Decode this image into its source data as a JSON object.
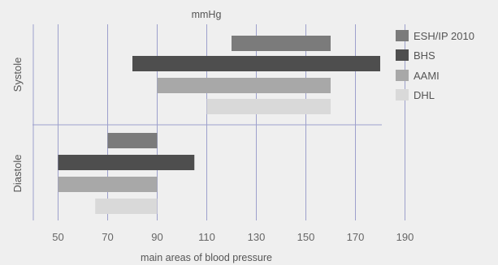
{
  "chart_data": {
    "type": "bar",
    "orientation": "horizontal-range",
    "title": "mmHg",
    "xlabel": "main areas of blood pressure",
    "xlim": [
      40,
      190
    ],
    "xticks": [
      50,
      70,
      90,
      110,
      130,
      150,
      170,
      190
    ],
    "groups": [
      {
        "label": "Systole",
        "bars": [
          {
            "series": "ESH/IP 2010",
            "start": 120,
            "end": 160
          },
          {
            "series": "BHS",
            "start": 80,
            "end": 180
          },
          {
            "series": "AAMI",
            "start": 90,
            "end": 160
          },
          {
            "series": "DHL",
            "start": 110,
            "end": 160
          }
        ]
      },
      {
        "label": "Diastole",
        "bars": [
          {
            "series": "ESH/IP 2010",
            "start": 70,
            "end": 90
          },
          {
            "series": "BHS",
            "start": 50,
            "end": 105
          },
          {
            "series": "AAMI",
            "start": 50,
            "end": 90
          },
          {
            "series": "DHL",
            "start": 65,
            "end": 90
          }
        ]
      }
    ],
    "series": [
      {
        "name": "ESH/IP 2010",
        "color": "#7b7b7b"
      },
      {
        "name": "BHS",
        "color": "#4e4e4e"
      },
      {
        "name": "AAMI",
        "color": "#a8a8a8"
      },
      {
        "name": "DHL",
        "color": "#d9d9d9"
      }
    ],
    "grid": true,
    "legend": "right",
    "gridline_color": "#9da0cc"
  }
}
